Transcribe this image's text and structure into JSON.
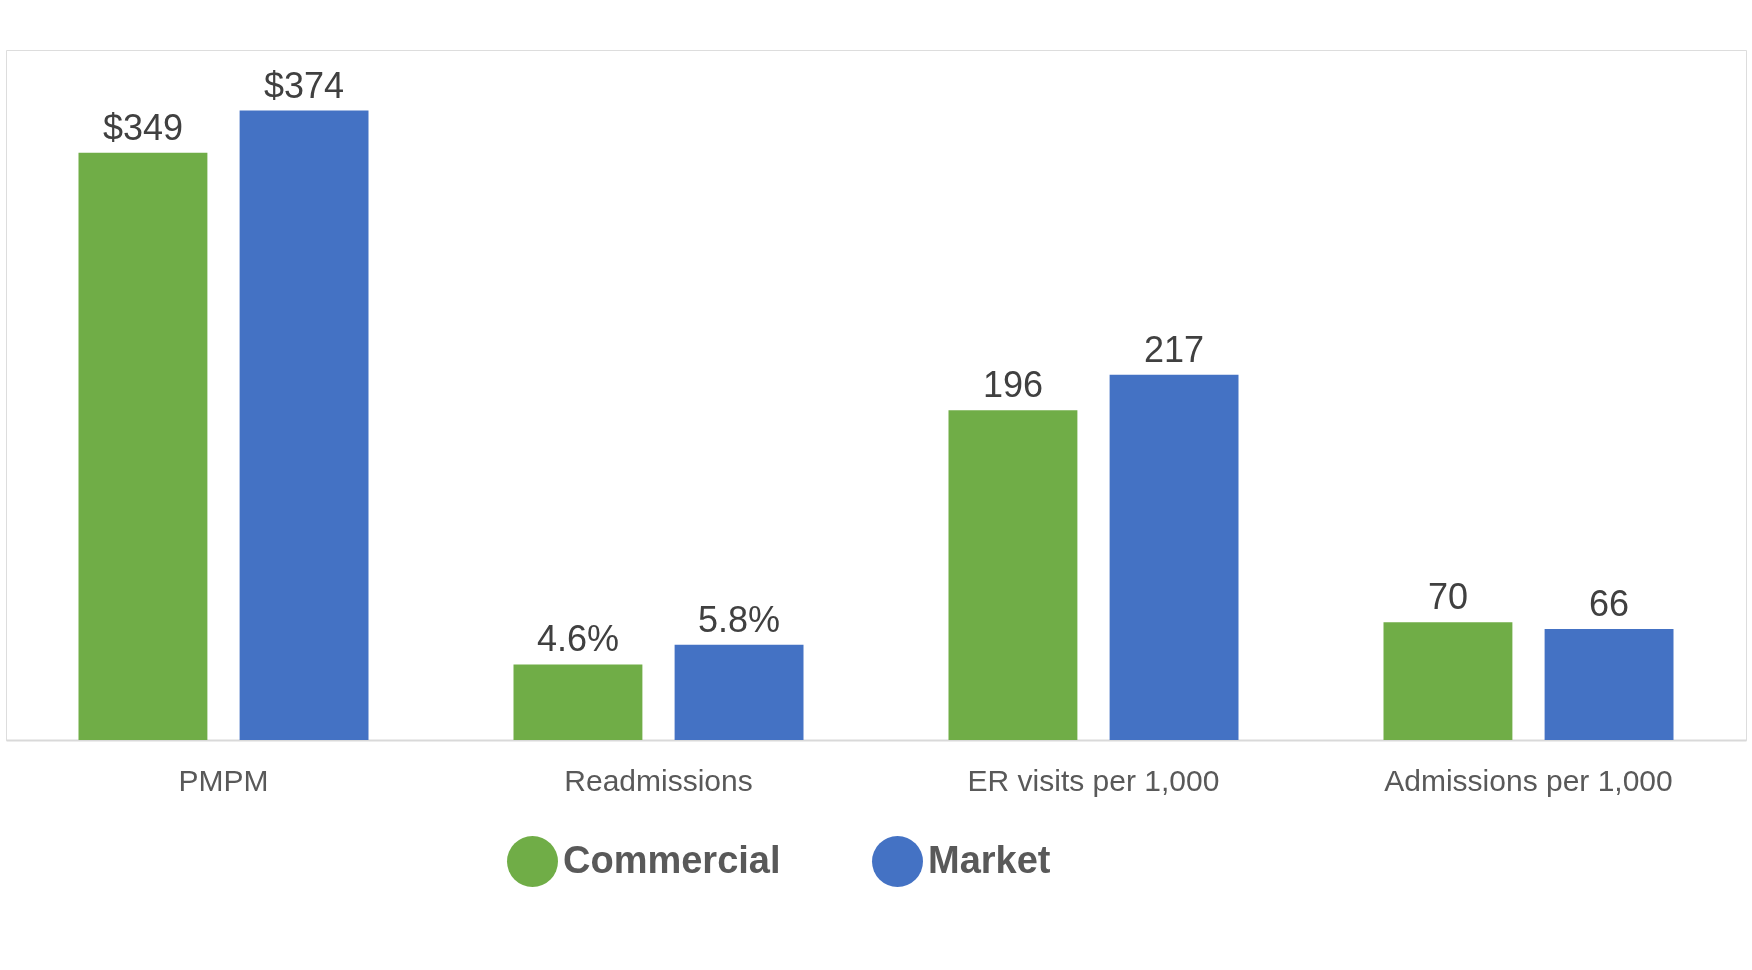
{
  "chart_data": {
    "type": "bar",
    "categories": [
      "PMPM",
      "Readmissions",
      "ER visits per 1,000",
      "Admissions  per 1,000"
    ],
    "legend": "bottom",
    "tick_labels": "x",
    "ylim": [
      0,
      410
    ],
    "y2lim": [
      0,
      42
    ],
    "series": [
      {
        "name": "Commercial",
        "color": "#70ad47",
        "values": [
          349,
          null,
          196,
          70
        ],
        "value_labels": [
          "$349",
          null,
          "196",
          "70"
        ]
      },
      {
        "name": "Market",
        "color": "#4472c4",
        "values": [
          374,
          null,
          217,
          66
        ],
        "value_labels": [
          "$374",
          null,
          "217",
          "66"
        ]
      },
      {
        "color": "#70ad47",
        "axis": "y2",
        "values": [
          null,
          4.6,
          null,
          null
        ],
        "value_labels": [
          null,
          "4.6%",
          null,
          null
        ]
      },
      {
        "color": "#4472c4",
        "axis": "y2",
        "values": [
          null,
          5.8,
          null,
          null
        ],
        "value_labels": [
          null,
          "5.8%",
          null,
          null
        ]
      }
    ]
  }
}
